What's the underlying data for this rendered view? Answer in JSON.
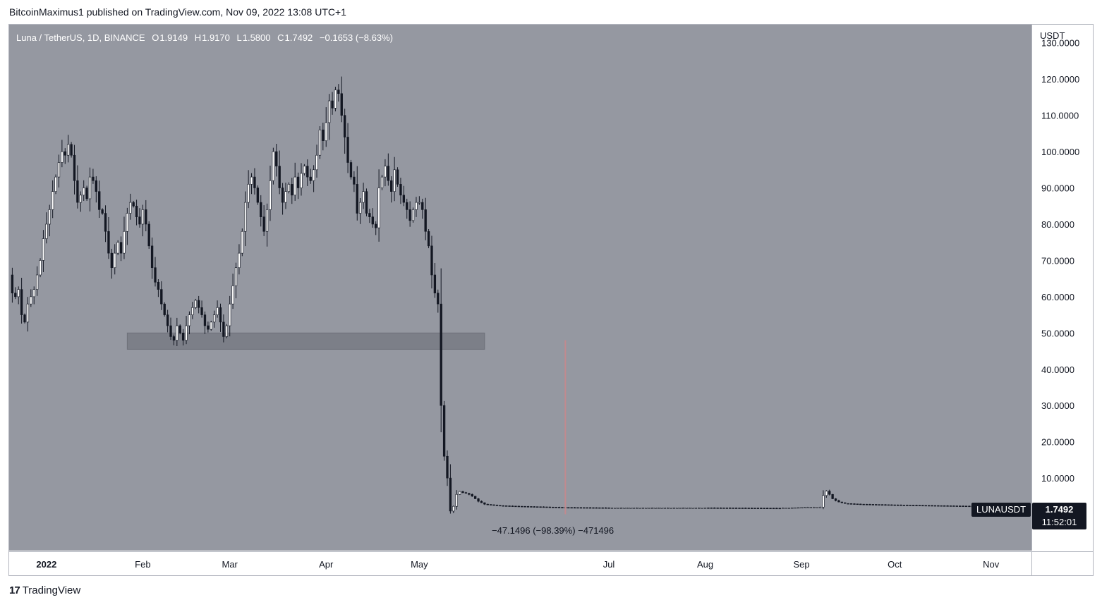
{
  "header": {
    "published": "BitcoinMaximus1 published on TradingView.com, Nov 09, 2022 13:08 UTC+1"
  },
  "legend": {
    "title": "Luna / TetherUS, 1D, BINANCE",
    "open_key": "O",
    "open": "1.9149",
    "high_key": "H",
    "high": "1.9170",
    "low_key": "L",
    "low": "1.5800",
    "close_key": "C",
    "close": "1.7492",
    "change": "−0.1653 (−8.63%)"
  },
  "price_axis": {
    "unit": "USDT",
    "ticks": [
      "130.0000",
      "120.0000",
      "110.0000",
      "100.0000",
      "90.0000",
      "80.0000",
      "70.0000",
      "60.0000",
      "50.0000",
      "40.0000",
      "30.0000",
      "20.0000",
      "10.0000"
    ]
  },
  "time_axis": {
    "ticks": [
      "2022",
      "Feb",
      "Mar",
      "Apr",
      "May",
      "Jul",
      "Aug",
      "Sep",
      "Oct",
      "Nov"
    ]
  },
  "symbol_tag": "LUNAUSDT",
  "last_price": {
    "price": "1.7492",
    "countdown": "11:52:01"
  },
  "measure_label": "−47.1496 (−98.39%) −471496",
  "footer": {
    "brand": "TradingView",
    "logo": "17"
  },
  "colors": {
    "background": "#9598a1",
    "candle": "#131722",
    "support_zone": "#7c7f88",
    "vertical_marker": "#c28a8e",
    "legend_text": "#ffffff"
  },
  "chart_data": {
    "type": "candlestick",
    "symbol": "LUNAUSDT",
    "timeframe": "1D",
    "exchange": "BINANCE",
    "xlim": [
      "2021-12-20",
      "2022-11-14"
    ],
    "ylim": [
      -10,
      135
    ],
    "y_ticks": [
      130,
      120,
      110,
      100,
      90,
      80,
      70,
      60,
      50,
      40,
      30,
      20,
      10
    ],
    "x_ticks": [
      "2022-01-01",
      "2022-02-01",
      "2022-03-01",
      "2022-04-01",
      "2022-05-01",
      "2022-07-01",
      "2022-08-01",
      "2022-09-01",
      "2022-10-01",
      "2022-11-01"
    ],
    "grid": false,
    "support_zone": {
      "x_start": "2022-01-27",
      "x_end": "2022-05-22",
      "y_low": 45.5,
      "y_high": 50
    },
    "vertical_marker": {
      "date": "2022-06-17",
      "y_low": 0,
      "y_high": 48
    },
    "closes": [
      [
        "2021-12-20",
        66
      ],
      [
        "2021-12-21",
        61
      ],
      [
        "2021-12-22",
        60
      ],
      [
        "2021-12-23",
        62
      ],
      [
        "2021-12-24",
        55
      ],
      [
        "2021-12-25",
        53
      ],
      [
        "2021-12-26",
        58
      ],
      [
        "2021-12-27",
        60
      ],
      [
        "2021-12-28",
        62
      ],
      [
        "2021-12-29",
        66
      ],
      [
        "2021-12-30",
        70
      ],
      [
        "2021-12-31",
        76
      ],
      [
        "2022-01-01",
        80
      ],
      [
        "2022-01-02",
        84
      ],
      [
        "2022-01-03",
        89
      ],
      [
        "2022-01-04",
        93
      ],
      [
        "2022-01-05",
        97
      ],
      [
        "2022-01-06",
        100
      ],
      [
        "2022-01-07",
        99
      ],
      [
        "2022-01-08",
        102
      ],
      [
        "2022-01-09",
        99
      ],
      [
        "2022-01-10",
        92
      ],
      [
        "2022-01-11",
        86
      ],
      [
        "2022-01-12",
        88
      ],
      [
        "2022-01-13",
        90
      ],
      [
        "2022-01-14",
        87
      ],
      [
        "2022-01-15",
        93
      ],
      [
        "2022-01-16",
        92
      ],
      [
        "2022-01-17",
        89
      ],
      [
        "2022-01-18",
        84
      ],
      [
        "2022-01-19",
        83
      ],
      [
        "2022-01-20",
        78
      ],
      [
        "2022-01-21",
        72
      ],
      [
        "2022-01-22",
        68
      ],
      [
        "2022-01-23",
        72
      ],
      [
        "2022-01-24",
        75
      ],
      [
        "2022-01-25",
        72
      ],
      [
        "2022-01-26",
        78
      ],
      [
        "2022-01-27",
        83
      ],
      [
        "2022-01-28",
        86
      ],
      [
        "2022-01-29",
        85
      ],
      [
        "2022-01-30",
        82
      ],
      [
        "2022-01-31",
        80
      ],
      [
        "2022-02-01",
        84
      ],
      [
        "2022-02-02",
        80
      ],
      [
        "2022-02-03",
        74
      ],
      [
        "2022-02-04",
        68
      ],
      [
        "2022-02-05",
        64
      ],
      [
        "2022-02-06",
        62
      ],
      [
        "2022-02-07",
        58
      ],
      [
        "2022-02-08",
        55
      ],
      [
        "2022-02-09",
        52
      ],
      [
        "2022-02-10",
        49
      ],
      [
        "2022-02-11",
        48
      ],
      [
        "2022-02-12",
        52
      ],
      [
        "2022-02-13",
        50
      ],
      [
        "2022-02-14",
        48
      ],
      [
        "2022-02-15",
        52
      ],
      [
        "2022-02-16",
        55
      ],
      [
        "2022-02-17",
        57
      ],
      [
        "2022-02-18",
        59
      ],
      [
        "2022-02-19",
        57
      ],
      [
        "2022-02-20",
        55
      ],
      [
        "2022-02-21",
        52
      ],
      [
        "2022-02-22",
        51
      ],
      [
        "2022-02-23",
        53
      ],
      [
        "2022-02-24",
        55
      ],
      [
        "2022-02-25",
        57
      ],
      [
        "2022-02-26",
        53
      ],
      [
        "2022-02-27",
        49
      ],
      [
        "2022-02-28",
        52
      ],
      [
        "2022-03-01",
        58
      ],
      [
        "2022-03-02",
        63
      ],
      [
        "2022-03-03",
        68
      ],
      [
        "2022-03-04",
        72
      ],
      [
        "2022-03-05",
        78
      ],
      [
        "2022-03-06",
        86
      ],
      [
        "2022-03-07",
        91
      ],
      [
        "2022-03-08",
        93
      ],
      [
        "2022-03-09",
        90
      ],
      [
        "2022-03-10",
        86
      ],
      [
        "2022-03-11",
        82
      ],
      [
        "2022-03-12",
        78
      ],
      [
        "2022-03-13",
        84
      ],
      [
        "2022-03-14",
        92
      ],
      [
        "2022-03-15",
        100
      ],
      [
        "2022-03-16",
        96
      ],
      [
        "2022-03-17",
        90
      ],
      [
        "2022-03-18",
        86
      ],
      [
        "2022-03-19",
        89
      ],
      [
        "2022-03-20",
        91
      ],
      [
        "2022-03-21",
        88
      ],
      [
        "2022-03-22",
        93
      ],
      [
        "2022-03-23",
        90
      ],
      [
        "2022-03-24",
        94
      ],
      [
        "2022-03-25",
        96
      ],
      [
        "2022-03-26",
        93
      ],
      [
        "2022-03-27",
        92
      ],
      [
        "2022-03-28",
        95
      ],
      [
        "2022-03-29",
        99
      ],
      [
        "2022-03-30",
        106
      ],
      [
        "2022-03-31",
        103
      ],
      [
        "2022-04-01",
        108
      ],
      [
        "2022-04-02",
        114
      ],
      [
        "2022-04-03",
        112
      ],
      [
        "2022-04-04",
        117
      ],
      [
        "2022-04-05",
        116
      ],
      [
        "2022-04-06",
        110
      ],
      [
        "2022-04-07",
        104
      ],
      [
        "2022-04-08",
        97
      ],
      [
        "2022-04-09",
        93
      ],
      [
        "2022-04-10",
        91
      ],
      [
        "2022-04-11",
        83
      ],
      [
        "2022-04-12",
        86
      ],
      [
        "2022-04-13",
        89
      ],
      [
        "2022-04-14",
        83
      ],
      [
        "2022-04-15",
        82
      ],
      [
        "2022-04-16",
        80
      ],
      [
        "2022-04-17",
        79
      ],
      [
        "2022-04-18",
        90
      ],
      [
        "2022-04-19",
        93
      ],
      [
        "2022-04-20",
        96
      ],
      [
        "2022-04-21",
        92
      ],
      [
        "2022-04-22",
        89
      ],
      [
        "2022-04-23",
        95
      ],
      [
        "2022-04-24",
        91
      ],
      [
        "2022-04-25",
        88
      ],
      [
        "2022-04-26",
        86
      ],
      [
        "2022-04-27",
        84
      ],
      [
        "2022-04-28",
        81
      ],
      [
        "2022-04-29",
        84
      ],
      [
        "2022-04-30",
        86
      ],
      [
        "2022-05-01",
        86
      ],
      [
        "2022-05-02",
        84
      ],
      [
        "2022-05-03",
        78
      ],
      [
        "2022-05-04",
        74
      ],
      [
        "2022-05-05",
        66
      ],
      [
        "2022-05-06",
        61
      ],
      [
        "2022-05-07",
        58
      ],
      [
        "2022-05-08",
        30
      ],
      [
        "2022-05-09",
        16
      ],
      [
        "2022-05-10",
        10
      ],
      [
        "2022-05-11",
        0.9
      ],
      [
        "2022-05-12",
        2.2
      ],
      [
        "2022-05-13",
        5.5
      ],
      [
        "2022-05-14",
        6.3
      ],
      [
        "2022-05-15",
        6.0
      ],
      [
        "2022-05-16",
        5.8
      ],
      [
        "2022-05-17",
        5.5
      ],
      [
        "2022-05-18",
        5.0
      ],
      [
        "2022-05-19",
        4.3
      ],
      [
        "2022-05-20",
        3.6
      ],
      [
        "2022-05-21",
        3.2
      ],
      [
        "2022-05-22",
        2.8
      ],
      [
        "2022-05-27",
        2.4
      ],
      [
        "2022-06-03",
        2.2
      ],
      [
        "2022-06-17",
        1.9
      ],
      [
        "2022-07-01",
        1.8
      ],
      [
        "2022-08-01",
        1.8
      ],
      [
        "2022-08-25",
        1.7
      ],
      [
        "2022-09-01",
        1.9
      ],
      [
        "2022-09-07",
        2.0
      ],
      [
        "2022-09-08",
        5.2
      ],
      [
        "2022-09-09",
        6.4
      ],
      [
        "2022-09-10",
        5.5
      ],
      [
        "2022-09-11",
        4.3
      ],
      [
        "2022-09-12",
        3.8
      ],
      [
        "2022-09-13",
        3.4
      ],
      [
        "2022-09-15",
        3.0
      ],
      [
        "2022-09-20",
        2.8
      ],
      [
        "2022-10-01",
        2.6
      ],
      [
        "2022-10-15",
        2.4
      ],
      [
        "2022-10-31",
        2.2
      ],
      [
        "2022-11-09",
        1.7492
      ]
    ]
  }
}
